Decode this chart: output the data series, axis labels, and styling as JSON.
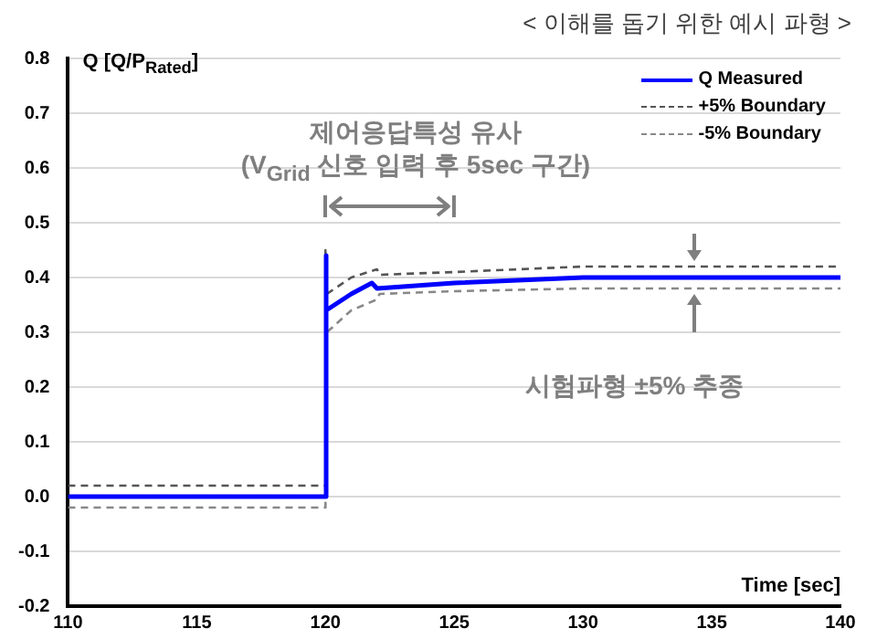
{
  "chart_data": {
    "type": "line",
    "title": "< 이해를 돕기 위한 예시 파형 >",
    "xlabel": "Time [sec]",
    "ylabel": "Q [Q/P$_{Rated}$]",
    "annotations": [
      "제어응답특성 유사",
      "(V$_{Grid}$ 신호 입력 후 5sec 구간)",
      "시험파형 ±5% 추종"
    ],
    "series": [
      {
        "name": "Q Measured",
        "color": "#0000ff",
        "line_style": "solid",
        "x": [
          110,
          120,
          120,
          120.05,
          121,
          121.8,
          122,
          125,
          130,
          140
        ],
        "values": [
          0,
          0,
          0.44,
          0.34,
          0.37,
          0.39,
          0.38,
          0.39,
          0.4,
          0.4
        ]
      },
      {
        "name": "+5% Boundary",
        "color": "#555555",
        "line_style": "dashed",
        "x": [
          110,
          120,
          120,
          120.05,
          121,
          122,
          122.1,
          125,
          130,
          140
        ],
        "values": [
          0.02,
          0.02,
          0.45,
          0.37,
          0.4,
          0.415,
          0.405,
          0.41,
          0.42,
          0.42
        ]
      },
      {
        "name": "-5% Boundary",
        "color": "#888888",
        "line_style": "dashed",
        "x": [
          110,
          120,
          120,
          120.05,
          121,
          122,
          122.1,
          125,
          130,
          140
        ],
        "values": [
          -0.02,
          -0.02,
          0.3,
          0.3,
          0.34,
          0.36,
          0.37,
          0.375,
          0.38,
          0.38
        ]
      }
    ],
    "xlim": [
      110,
      140
    ],
    "xticks": [
      110,
      115,
      120,
      125,
      130,
      135,
      140
    ],
    "ylim": [
      -0.2,
      0.8
    ],
    "yticks": [
      {
        "value": -0.2,
        "label": "-0.2"
      },
      {
        "value": -0.1,
        "label": "-0.1"
      },
      {
        "value": 0,
        "label": "0.0"
      },
      {
        "value": 0.1,
        "label": "0.1"
      },
      {
        "value": 0.2,
        "label": "0.2"
      },
      {
        "value": 0.3,
        "label": "0.3"
      },
      {
        "value": 0.4,
        "label": "0.4"
      },
      {
        "value": 0.5,
        "label": "0.5"
      },
      {
        "value": 0.6,
        "label": "0.6"
      },
      {
        "value": 0.7,
        "label": "0.7"
      },
      {
        "value": 0.8,
        "label": "0.8"
      }
    ],
    "grid": "y",
    "legend": "top right",
    "marker": "none"
  }
}
